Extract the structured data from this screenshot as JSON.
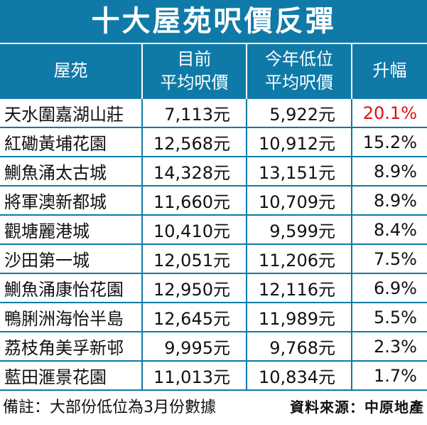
{
  "title": "十大屋苑呎價反彈",
  "headers": {
    "estate": "屋苑",
    "current_line1": "目前",
    "current_line2": "平均呎價",
    "low_line1": "今年低位",
    "low_line2": "平均呎價",
    "rise": "升幅"
  },
  "rows": [
    {
      "estate": "天水圍嘉湖山莊",
      "current": "7,113元",
      "low": "5,922元",
      "rise": "20.1%"
    },
    {
      "estate": "紅磡黃埔花園",
      "current": "12,568元",
      "low": "10,912元",
      "rise": "15.2%"
    },
    {
      "estate": "鰂魚涌太古城",
      "current": "14,328元",
      "low": "13,151元",
      "rise": "8.9%"
    },
    {
      "estate": "將軍澳新都城",
      "current": "11,660元",
      "low": "10,709元",
      "rise": "8.9%"
    },
    {
      "estate": "觀塘麗港城",
      "current": "10,410元",
      "low": "9,599元",
      "rise": "8.4%"
    },
    {
      "estate": "沙田第一城",
      "current": "12,051元",
      "low": "11,206元",
      "rise": "7.5%"
    },
    {
      "estate": "鰂魚涌康怡花園",
      "current": "12,950元",
      "low": "12,116元",
      "rise": "6.9%"
    },
    {
      "estate": "鴨脷洲海怡半島",
      "current": "12,645元",
      "low": "11,989元",
      "rise": "5.5%"
    },
    {
      "estate": "荔枝角美孚新邨",
      "current": "9,995元",
      "low": "9,768元",
      "rise": "2.3%"
    },
    {
      "estate": "藍田滙景花園",
      "current": "11,013元",
      "low": "10,834元",
      "rise": "1.7%"
    }
  ],
  "footer": {
    "note": "備註：大部份低位為3月份數據",
    "source": "資料來源：中原地產"
  },
  "colors": {
    "header_bg": "#0f7aa8",
    "highlight": "#e01010"
  }
}
